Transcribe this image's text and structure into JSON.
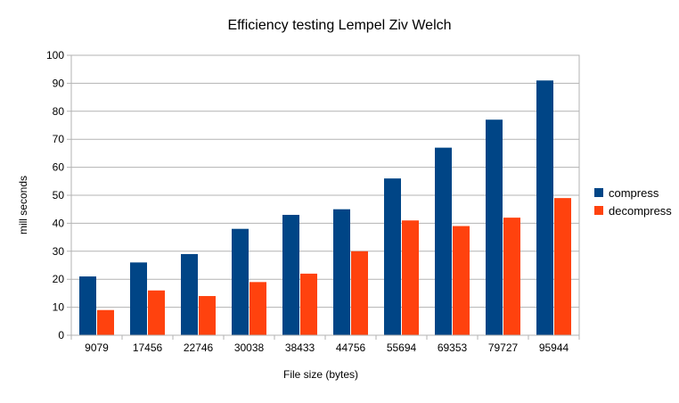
{
  "chart_data": {
    "type": "bar",
    "title": "Efficiency testing Lempel Ziv Welch",
    "xlabel": "File size (bytes)",
    "ylabel": "mill seconds",
    "categories": [
      "9079",
      "17456",
      "22746",
      "30038",
      "38433",
      "44756",
      "55694",
      "69353",
      "79727",
      "95944"
    ],
    "series": [
      {
        "name": "compress",
        "color": "#004586",
        "values": [
          21,
          26,
          29,
          38,
          43,
          45,
          56,
          67,
          77,
          91
        ]
      },
      {
        "name": "decompress",
        "color": "#ff420e",
        "values": [
          9,
          16,
          14,
          19,
          22,
          30,
          41,
          39,
          42,
          49
        ]
      }
    ],
    "ylim": [
      0,
      100
    ],
    "yticks": [
      0,
      10,
      20,
      30,
      40,
      50,
      60,
      70,
      80,
      90,
      100
    ],
    "grid": true,
    "legend_position": "right"
  }
}
